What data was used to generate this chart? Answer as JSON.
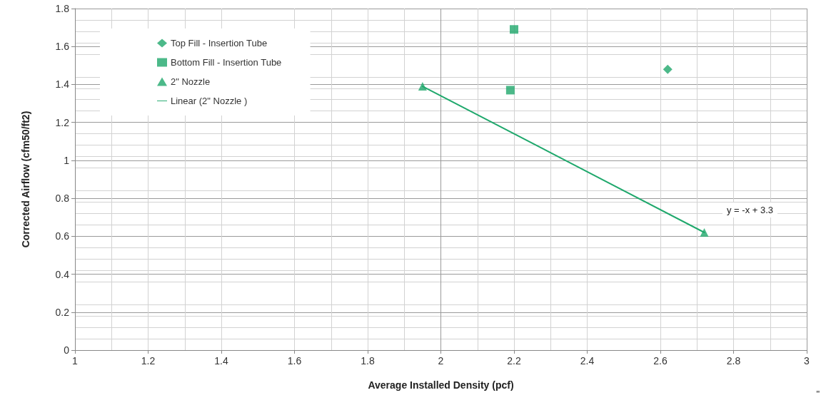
{
  "chart_data": {
    "type": "scatter",
    "xlabel": "Average Installed Density (pcf)",
    "ylabel": "Corrected Airflow (cfm50/ft2)",
    "xlim": [
      1,
      3
    ],
    "xticks": [
      1,
      1.2,
      1.4,
      1.6,
      1.8,
      2,
      2.2,
      2.4,
      2.6,
      2.8,
      3
    ],
    "ylim": [
      0,
      1.8
    ],
    "yticks": [
      0,
      0.2,
      0.4,
      0.6,
      0.8,
      1,
      1.2,
      1.4,
      1.6,
      1.8
    ],
    "grid": true,
    "legend": "top left",
    "series": [
      {
        "name": "Top Fill - Insertion Tube",
        "color": "#1fa86c",
        "marker": "diamond",
        "x": [
          2.62
        ],
        "values": [
          1.48
        ]
      },
      {
        "name": "Bottom Fill - Insertion Tube",
        "color": "#1fa86c",
        "marker": "square",
        "x": [
          2.2,
          2.19
        ],
        "values": [
          1.69,
          1.37
        ]
      },
      {
        "name": "2\" Nozzle",
        "color": "#1fa86c",
        "marker": "triangle",
        "x": [
          1.95,
          2.72
        ],
        "values": [
          1.39,
          0.62
        ]
      },
      {
        "name": "Linear (2\" Nozzle )",
        "type": "line",
        "color": "#1fa86c",
        "marker": "none",
        "line_style": "solid",
        "x": [
          1.95,
          2.72
        ],
        "values": [
          1.39,
          0.62
        ]
      }
    ],
    "annotations": [
      "y = -x + 3.3",
      "\""
    ]
  }
}
